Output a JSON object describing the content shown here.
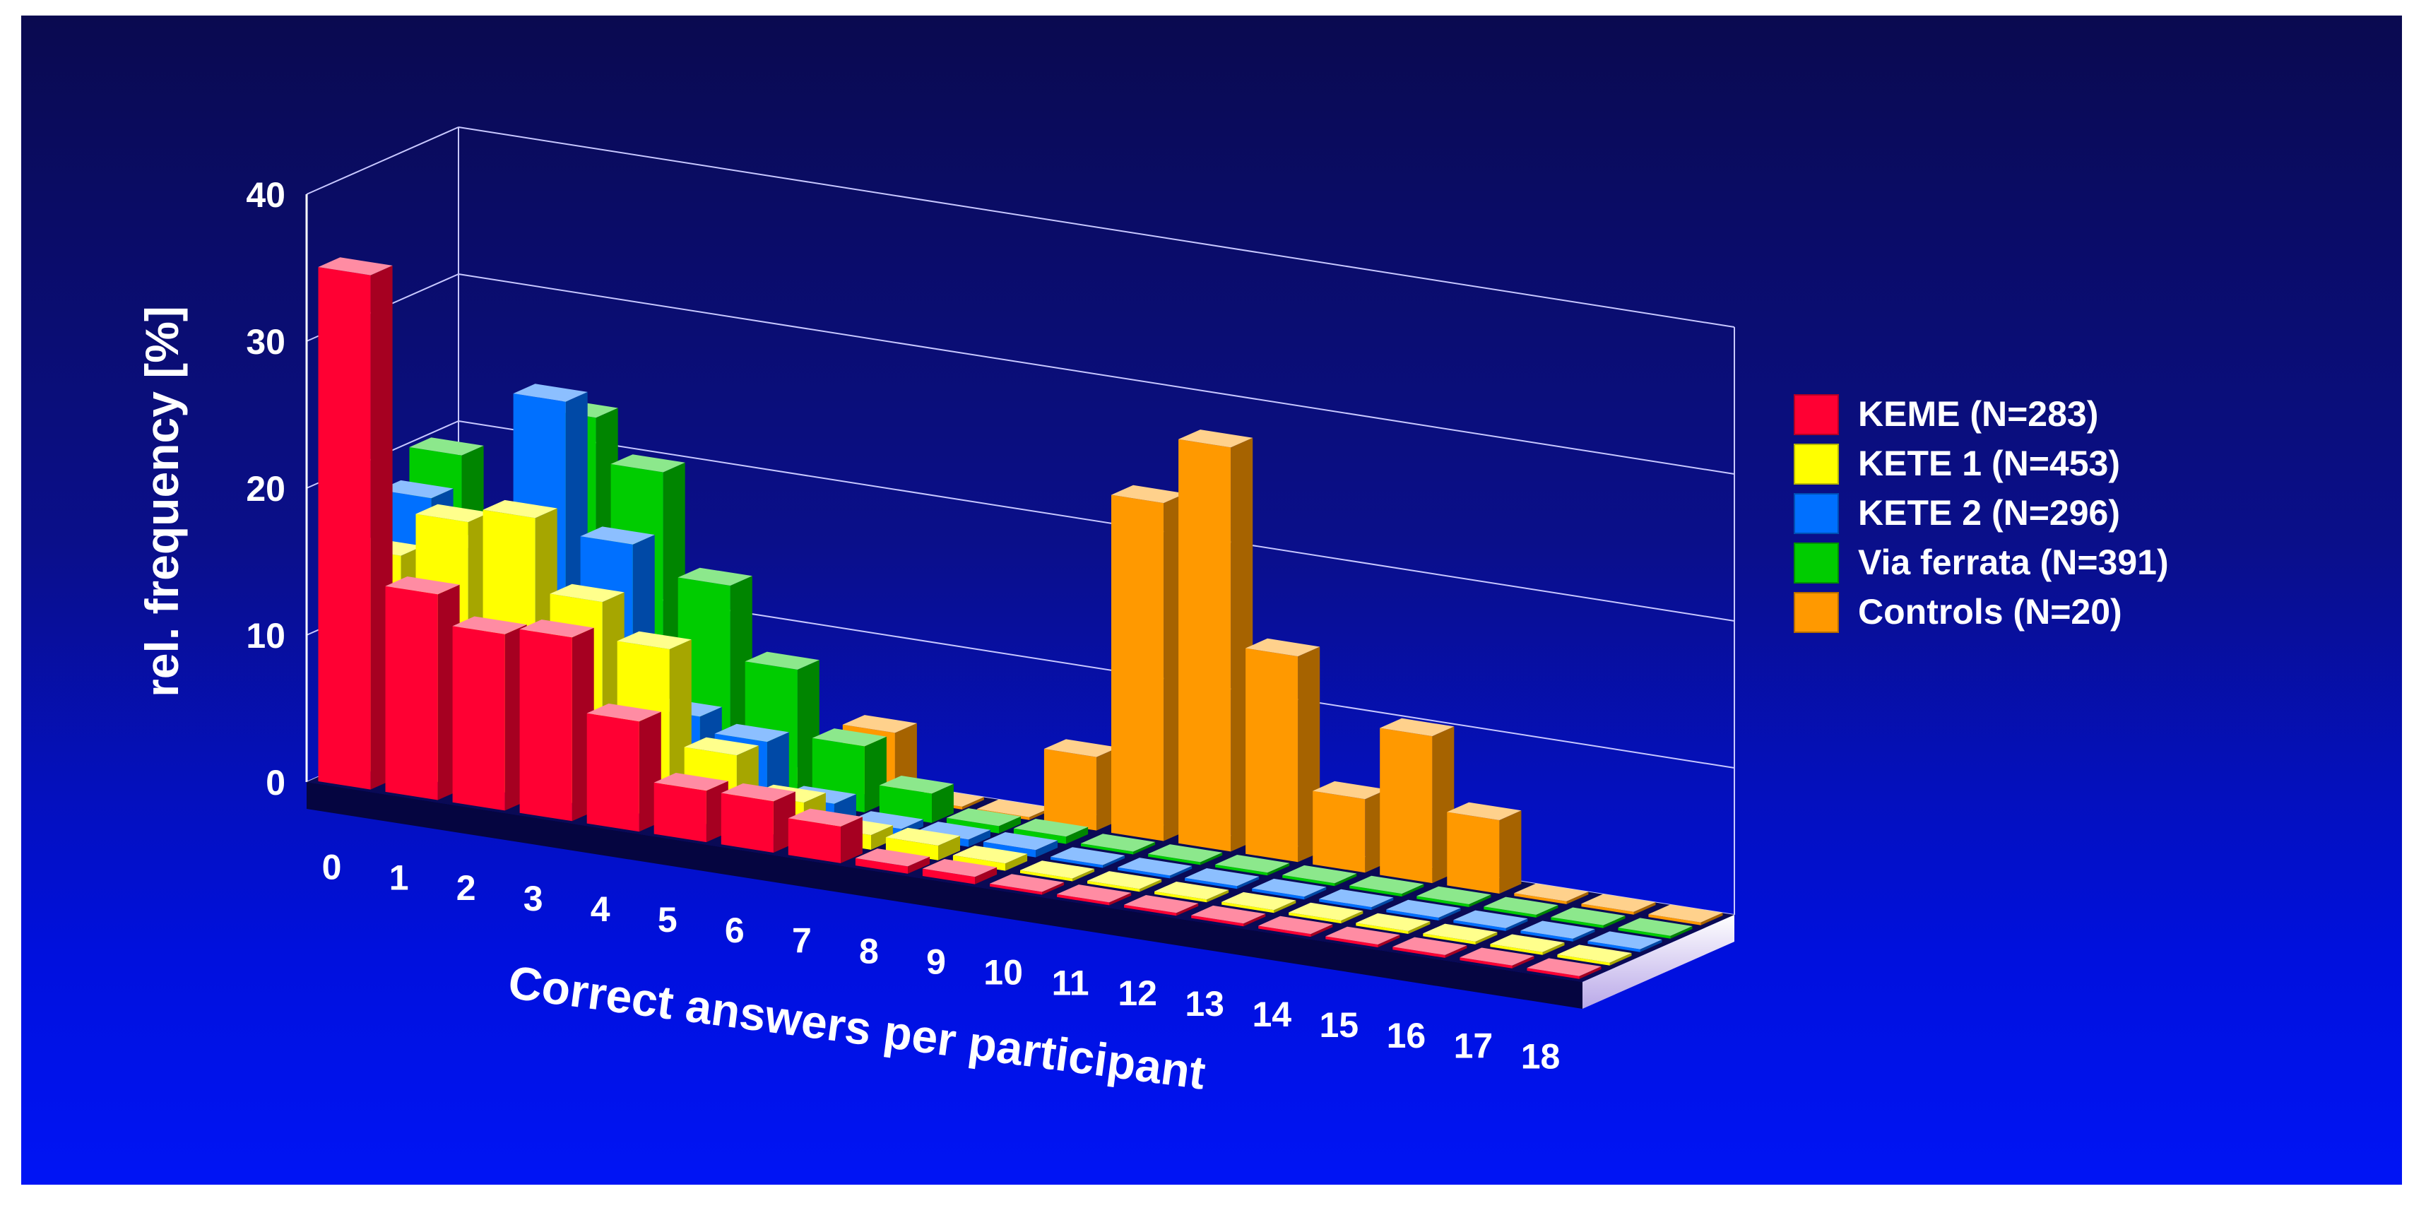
{
  "chart_data": {
    "type": "bar",
    "title": "",
    "xlabel": "Correct answers per participant",
    "ylabel": "rel. frequency [%]",
    "ylim": [
      0,
      40
    ],
    "yticks": [
      "0",
      "10",
      "20",
      "30",
      "40"
    ],
    "categories": [
      "0",
      "1",
      "2",
      "3",
      "4",
      "5",
      "6",
      "7",
      "8",
      "9",
      "10",
      "11",
      "12",
      "13",
      "14",
      "15",
      "16",
      "17",
      "18"
    ],
    "grid": true,
    "legend_position": "right",
    "series": [
      {
        "name": "KEME (N=283)",
        "color": "#ff0033",
        "values": [
          35,
          14,
          12,
          12.5,
          7.5,
          3.5,
          3.5,
          2.5,
          0.5,
          0.5,
          0,
          0,
          0,
          0,
          0,
          0,
          0,
          0,
          0
        ]
      },
      {
        "name": "KETE 1 (N=453)",
        "color": "#ffff00",
        "values": [
          15,
          18,
          19,
          14,
          11.5,
          5,
          2.5,
          1,
          1,
          0.5,
          0,
          0,
          0,
          0,
          0,
          0,
          0,
          0,
          0
        ]
      },
      {
        "name": "KETE 2 (N=296)",
        "color": "#0070ff",
        "values": [
          18,
          15,
          26,
          17,
          6,
          5,
          1.5,
          0.5,
          0.5,
          0.5,
          0,
          0,
          0,
          0,
          0,
          0,
          0,
          0,
          0
        ]
      },
      {
        "name": "Via ferrata (N=391)",
        "color": "#00cc00",
        "values": [
          20,
          13,
          24,
          21,
          14,
          9,
          4.5,
          2,
          0.5,
          0.5,
          0,
          0,
          0,
          0,
          0,
          0,
          0,
          0,
          0
        ]
      },
      {
        "name": "Controls (N=20)",
        "color": "#ff9900",
        "values": [
          0,
          0,
          0,
          0,
          0,
          0,
          4.5,
          0,
          0,
          5,
          23,
          27.5,
          14,
          5,
          10,
          5,
          0,
          0,
          0
        ]
      }
    ]
  }
}
